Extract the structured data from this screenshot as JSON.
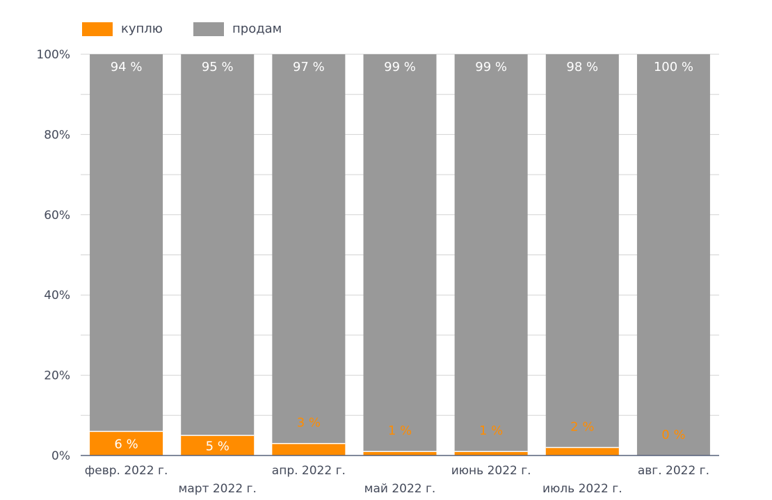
{
  "chart_data": {
    "type": "bar",
    "stacked": true,
    "categories": [
      "февр. 2022 г.",
      "март 2022 г.",
      "апр. 2022 г.",
      "май 2022 г.",
      "июнь 2022 г.",
      "июль 2022 г.",
      "авг. 2022 г."
    ],
    "series": [
      {
        "name": "куплю",
        "values": [
          6,
          5,
          3,
          1,
          1,
          2,
          0
        ],
        "labels": [
          "6 %",
          "5 %",
          "3 %",
          "1 %",
          "1 %",
          "2 %",
          "0 %"
        ],
        "color": "#FF8C00"
      },
      {
        "name": "продам",
        "values": [
          94,
          95,
          97,
          99,
          99,
          98,
          100
        ],
        "labels": [
          "94 %",
          "95 %",
          "97 %",
          "99 %",
          "99 %",
          "98 %",
          "100 %"
        ],
        "color": "#999999"
      }
    ],
    "ylim": [
      0,
      100
    ],
    "yticks": [
      "0%",
      "20%",
      "40%",
      "60%",
      "80%",
      "100%"
    ],
    "grid": true,
    "legend": "top-left"
  }
}
